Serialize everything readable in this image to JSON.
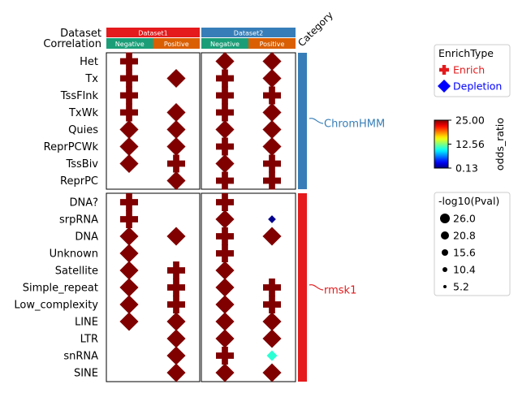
{
  "chart_data": {
    "type": "scatter",
    "header_rows": {
      "dataset_label": "Dataset",
      "correlation_label": "Correlation",
      "category_label": "Category"
    },
    "datasets": [
      {
        "name": "Dataset1",
        "color": "#e41a1c"
      },
      {
        "name": "Dataset2",
        "color": "#377eb8"
      }
    ],
    "correlations": [
      {
        "name": "Negative",
        "color": "#1b9e77"
      },
      {
        "name": "Positive",
        "color": "#d95f02"
      }
    ],
    "columns": [
      {
        "dataset": "Dataset1",
        "correlation": "Negative"
      },
      {
        "dataset": "Dataset1",
        "correlation": "Positive"
      },
      {
        "dataset": "Dataset2",
        "correlation": "Negative"
      },
      {
        "dataset": "Dataset2",
        "correlation": "Positive"
      }
    ],
    "categories": [
      {
        "name": "ChromHMM",
        "color": "#377eb8",
        "rows": [
          "Het",
          "Tx",
          "TssFlnk",
          "TxWk",
          "Quies",
          "ReprPCWk",
          "TssBiv",
          "ReprPC"
        ]
      },
      {
        "name": "rmsk1",
        "color": "#e41a1c",
        "rows": [
          "DNA?",
          "srpRNA",
          "DNA",
          "Unknown",
          "Satellite",
          "Simple_repeat",
          "Low_complexity",
          "LINE",
          "LTR",
          "snRNA",
          "SINE"
        ]
      }
    ],
    "points": [
      {
        "row": "Het",
        "col": 0,
        "type": "Enrich",
        "odds_ratio": 25.0,
        "neglog10p": 26.0
      },
      {
        "row": "Het",
        "col": 2,
        "type": "Depletion",
        "odds_ratio": 25.0,
        "neglog10p": 26.0
      },
      {
        "row": "Het",
        "col": 3,
        "type": "Depletion",
        "odds_ratio": 25.0,
        "neglog10p": 26.0
      },
      {
        "row": "Tx",
        "col": 0,
        "type": "Enrich",
        "odds_ratio": 25.0,
        "neglog10p": 26.0
      },
      {
        "row": "Tx",
        "col": 1,
        "type": "Depletion",
        "odds_ratio": 25.0,
        "neglog10p": 26.0
      },
      {
        "row": "Tx",
        "col": 2,
        "type": "Enrich",
        "odds_ratio": 25.0,
        "neglog10p": 26.0
      },
      {
        "row": "Tx",
        "col": 3,
        "type": "Depletion",
        "odds_ratio": 25.0,
        "neglog10p": 26.0
      },
      {
        "row": "TssFlnk",
        "col": 0,
        "type": "Enrich",
        "odds_ratio": 25.0,
        "neglog10p": 26.0
      },
      {
        "row": "TssFlnk",
        "col": 2,
        "type": "Enrich",
        "odds_ratio": 25.0,
        "neglog10p": 26.0
      },
      {
        "row": "TssFlnk",
        "col": 3,
        "type": "Enrich",
        "odds_ratio": 25.0,
        "neglog10p": 26.0
      },
      {
        "row": "TxWk",
        "col": 0,
        "type": "Enrich",
        "odds_ratio": 25.0,
        "neglog10p": 26.0
      },
      {
        "row": "TxWk",
        "col": 1,
        "type": "Depletion",
        "odds_ratio": 25.0,
        "neglog10p": 26.0
      },
      {
        "row": "TxWk",
        "col": 2,
        "type": "Enrich",
        "odds_ratio": 25.0,
        "neglog10p": 26.0
      },
      {
        "row": "TxWk",
        "col": 3,
        "type": "Depletion",
        "odds_ratio": 25.0,
        "neglog10p": 26.0
      },
      {
        "row": "Quies",
        "col": 0,
        "type": "Depletion",
        "odds_ratio": 25.0,
        "neglog10p": 26.0
      },
      {
        "row": "Quies",
        "col": 1,
        "type": "Depletion",
        "odds_ratio": 25.0,
        "neglog10p": 26.0
      },
      {
        "row": "Quies",
        "col": 2,
        "type": "Depletion",
        "odds_ratio": 25.0,
        "neglog10p": 26.0
      },
      {
        "row": "Quies",
        "col": 3,
        "type": "Depletion",
        "odds_ratio": 25.0,
        "neglog10p": 26.0
      },
      {
        "row": "ReprPCWk",
        "col": 0,
        "type": "Depletion",
        "odds_ratio": 25.0,
        "neglog10p": 26.0
      },
      {
        "row": "ReprPCWk",
        "col": 1,
        "type": "Depletion",
        "odds_ratio": 25.0,
        "neglog10p": 26.0
      },
      {
        "row": "ReprPCWk",
        "col": 2,
        "type": "Enrich",
        "odds_ratio": 25.0,
        "neglog10p": 26.0
      },
      {
        "row": "ReprPCWk",
        "col": 3,
        "type": "Depletion",
        "odds_ratio": 25.0,
        "neglog10p": 26.0
      },
      {
        "row": "TssBiv",
        "col": 0,
        "type": "Depletion",
        "odds_ratio": 25.0,
        "neglog10p": 26.0
      },
      {
        "row": "TssBiv",
        "col": 1,
        "type": "Enrich",
        "odds_ratio": 25.0,
        "neglog10p": 26.0
      },
      {
        "row": "TssBiv",
        "col": 2,
        "type": "Depletion",
        "odds_ratio": 25.0,
        "neglog10p": 26.0
      },
      {
        "row": "TssBiv",
        "col": 3,
        "type": "Enrich",
        "odds_ratio": 25.0,
        "neglog10p": 26.0
      },
      {
        "row": "ReprPC",
        "col": 1,
        "type": "Depletion",
        "odds_ratio": 25.0,
        "neglog10p": 26.0
      },
      {
        "row": "ReprPC",
        "col": 2,
        "type": "Enrich",
        "odds_ratio": 25.0,
        "neglog10p": 26.0
      },
      {
        "row": "ReprPC",
        "col": 3,
        "type": "Enrich",
        "odds_ratio": 25.0,
        "neglog10p": 26.0
      },
      {
        "row": "DNA?",
        "col": 0,
        "type": "Enrich",
        "odds_ratio": 25.0,
        "neglog10p": 26.0
      },
      {
        "row": "DNA?",
        "col": 2,
        "type": "Enrich",
        "odds_ratio": 25.0,
        "neglog10p": 26.0
      },
      {
        "row": "srpRNA",
        "col": 0,
        "type": "Enrich",
        "odds_ratio": 25.0,
        "neglog10p": 26.0
      },
      {
        "row": "srpRNA",
        "col": 2,
        "type": "Depletion",
        "odds_ratio": 25.0,
        "neglog10p": 26.0
      },
      {
        "row": "srpRNA",
        "col": 3,
        "type": "Depletion",
        "odds_ratio": 0.5,
        "neglog10p": 5.2
      },
      {
        "row": "DNA",
        "col": 0,
        "type": "Depletion",
        "odds_ratio": 25.0,
        "neglog10p": 26.0
      },
      {
        "row": "DNA",
        "col": 1,
        "type": "Depletion",
        "odds_ratio": 25.0,
        "neglog10p": 26.0
      },
      {
        "row": "DNA",
        "col": 2,
        "type": "Enrich",
        "odds_ratio": 25.0,
        "neglog10p": 26.0
      },
      {
        "row": "DNA",
        "col": 3,
        "type": "Depletion",
        "odds_ratio": 25.0,
        "neglog10p": 26.0
      },
      {
        "row": "Unknown",
        "col": 0,
        "type": "Depletion",
        "odds_ratio": 25.0,
        "neglog10p": 26.0
      },
      {
        "row": "Unknown",
        "col": 2,
        "type": "Enrich",
        "odds_ratio": 25.0,
        "neglog10p": 26.0
      },
      {
        "row": "Satellite",
        "col": 0,
        "type": "Depletion",
        "odds_ratio": 25.0,
        "neglog10p": 26.0
      },
      {
        "row": "Satellite",
        "col": 1,
        "type": "Enrich",
        "odds_ratio": 25.0,
        "neglog10p": 26.0
      },
      {
        "row": "Satellite",
        "col": 2,
        "type": "Depletion",
        "odds_ratio": 25.0,
        "neglog10p": 26.0
      },
      {
        "row": "Simple_repeat",
        "col": 0,
        "type": "Depletion",
        "odds_ratio": 25.0,
        "neglog10p": 26.0
      },
      {
        "row": "Simple_repeat",
        "col": 1,
        "type": "Enrich",
        "odds_ratio": 25.0,
        "neglog10p": 26.0
      },
      {
        "row": "Simple_repeat",
        "col": 2,
        "type": "Depletion",
        "odds_ratio": 25.0,
        "neglog10p": 26.0
      },
      {
        "row": "Simple_repeat",
        "col": 3,
        "type": "Enrich",
        "odds_ratio": 25.0,
        "neglog10p": 26.0
      },
      {
        "row": "Low_complexity",
        "col": 0,
        "type": "Depletion",
        "odds_ratio": 25.0,
        "neglog10p": 26.0
      },
      {
        "row": "Low_complexity",
        "col": 1,
        "type": "Enrich",
        "odds_ratio": 25.0,
        "neglog10p": 26.0
      },
      {
        "row": "Low_complexity",
        "col": 2,
        "type": "Depletion",
        "odds_ratio": 25.0,
        "neglog10p": 26.0
      },
      {
        "row": "Low_complexity",
        "col": 3,
        "type": "Enrich",
        "odds_ratio": 25.0,
        "neglog10p": 26.0
      },
      {
        "row": "LINE",
        "col": 0,
        "type": "Depletion",
        "odds_ratio": 25.0,
        "neglog10p": 26.0
      },
      {
        "row": "LINE",
        "col": 1,
        "type": "Depletion",
        "odds_ratio": 25.0,
        "neglog10p": 26.0
      },
      {
        "row": "LINE",
        "col": 2,
        "type": "Depletion",
        "odds_ratio": 25.0,
        "neglog10p": 26.0
      },
      {
        "row": "LINE",
        "col": 3,
        "type": "Depletion",
        "odds_ratio": 25.0,
        "neglog10p": 26.0
      },
      {
        "row": "LTR",
        "col": 1,
        "type": "Depletion",
        "odds_ratio": 25.0,
        "neglog10p": 26.0
      },
      {
        "row": "LTR",
        "col": 2,
        "type": "Depletion",
        "odds_ratio": 25.0,
        "neglog10p": 26.0
      },
      {
        "row": "LTR",
        "col": 3,
        "type": "Depletion",
        "odds_ratio": 25.0,
        "neglog10p": 26.0
      },
      {
        "row": "snRNA",
        "col": 1,
        "type": "Depletion",
        "odds_ratio": 25.0,
        "neglog10p": 26.0
      },
      {
        "row": "snRNA",
        "col": 2,
        "type": "Enrich",
        "odds_ratio": 25.0,
        "neglog10p": 26.0
      },
      {
        "row": "snRNA",
        "col": 3,
        "type": "Depletion",
        "odds_ratio": 10.5,
        "neglog10p": 10.4
      },
      {
        "row": "SINE",
        "col": 1,
        "type": "Depletion",
        "odds_ratio": 25.0,
        "neglog10p": 26.0
      },
      {
        "row": "SINE",
        "col": 2,
        "type": "Depletion",
        "odds_ratio": 25.0,
        "neglog10p": 26.0
      },
      {
        "row": "SINE",
        "col": 3,
        "type": "Depletion",
        "odds_ratio": 25.0,
        "neglog10p": 26.0
      }
    ],
    "legend_type": {
      "title": "EnrichType",
      "items": [
        {
          "label": "Enrich",
          "color": "#e41a1c",
          "marker": "plus"
        },
        {
          "label": "Depletion",
          "color": "#0000ff",
          "marker": "diamond"
        }
      ]
    },
    "colorbar": {
      "label": "odds_ratio",
      "min": 0.13,
      "max": 25.0,
      "ticks": [
        "25.00",
        "12.56",
        "0.13"
      ],
      "colormap": "jet"
    },
    "legend_size": {
      "title": "-log10(Pval)",
      "items": [
        "26.0",
        "20.8",
        "15.6",
        "10.4",
        "5.2"
      ]
    }
  }
}
